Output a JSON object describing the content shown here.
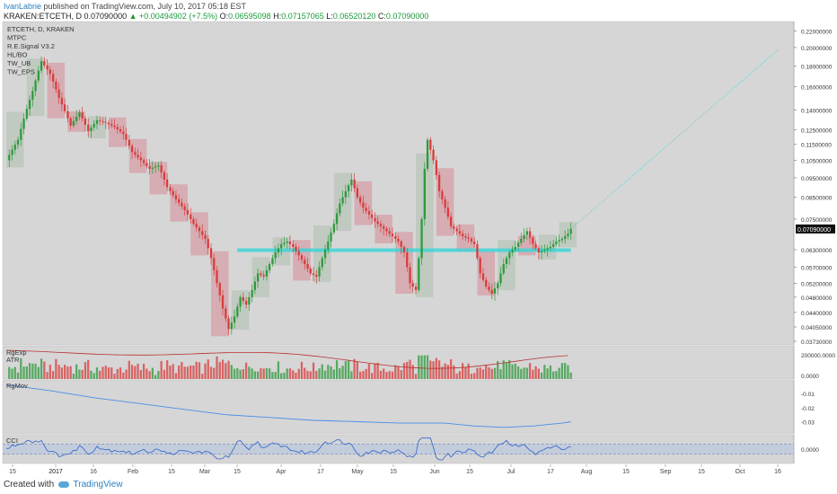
{
  "header": {
    "author": "IvanLabrie",
    "published": "published on TradingView.com, July 10, 2017 05:18 EST",
    "symbol": "KRAKEN:ETCETH, D",
    "last": "0.07090000",
    "change": "▲ +0.00494902 (+7.5%)",
    "o_label": "O:",
    "o": "0.06595098",
    "h_label": "H:",
    "h": "0.07157065",
    "l_label": "L:",
    "l": "0.06520120",
    "c_label": "C:",
    "c": "0.07090000"
  },
  "legend": [
    "ETCETH, D, KRAKEN",
    "MTPC",
    "R.E.Signal V3.2",
    "HL/BO",
    "TW_UB",
    "TW_EPS"
  ],
  "pane_labels": {
    "volume_1": "RgExp",
    "volume_2": "ATR",
    "mom": "RgMov",
    "cci": "CCI"
  },
  "footer": {
    "created": "Created with",
    "brand": "TradingView"
  },
  "colors": {
    "bg": "#d6d6d6",
    "up": "#2e9a3c",
    "down": "#d83c3c",
    "bull_box": "#bcc8bc",
    "bear_box": "#d6a6ad",
    "cyan": "#36d4d8",
    "blue": "#4a8ee8",
    "red_line": "#b83030"
  },
  "chart_data": [
    {
      "type": "candlestick",
      "title": "ETCETH, D, KRAKEN",
      "price_axis_labels": [
        "0.22000000",
        "0.20000000",
        "0.18000000",
        "0.16000000",
        "0.14000000",
        "0.12500000",
        "0.11500000",
        "0.10500000",
        "0.09500000",
        "0.08500000",
        "0.07500000",
        "0.07090000",
        "0.06300000",
        "0.05700000",
        "0.05200000",
        "0.04800000",
        "0.04400000",
        "0.04050000",
        "0.03730000"
      ],
      "last_price": 0.0709,
      "log_scale": true,
      "ylim": [
        0.0373,
        0.225
      ],
      "x_ticks": [
        "15",
        "2017",
        "16",
        "Feb",
        "15",
        "Mar",
        "15",
        "Apr",
        "17",
        "May",
        "15",
        "Jun",
        "15",
        "Jul",
        "17",
        "Aug",
        "15",
        "Sep",
        "15",
        "Oct",
        "16"
      ],
      "close_path": [
        [
          0,
          0.105
        ],
        [
          4,
          0.118
        ],
        [
          9,
          0.156
        ],
        [
          12,
          0.185
        ],
        [
          15,
          0.172
        ],
        [
          18,
          0.15
        ],
        [
          22,
          0.128
        ],
        [
          25,
          0.138
        ],
        [
          28,
          0.124
        ],
        [
          31,
          0.132
        ],
        [
          34,
          0.13
        ],
        [
          37,
          0.127
        ],
        [
          40,
          0.122
        ],
        [
          43,
          0.11
        ],
        [
          46,
          0.105
        ],
        [
          49,
          0.1
        ],
        [
          52,
          0.102
        ],
        [
          55,
          0.09
        ],
        [
          58,
          0.084
        ],
        [
          61,
          0.079
        ],
        [
          64,
          0.073
        ],
        [
          66,
          0.07
        ],
        [
          68,
          0.067
        ],
        [
          70,
          0.06
        ],
        [
          72,
          0.052
        ],
        [
          74,
          0.045
        ],
        [
          76,
          0.04
        ],
        [
          78,
          0.043
        ],
        [
          80,
          0.048
        ],
        [
          82,
          0.046
        ],
        [
          84,
          0.05
        ],
        [
          86,
          0.055
        ],
        [
          88,
          0.054
        ],
        [
          90,
          0.058
        ],
        [
          92,
          0.062
        ],
        [
          94,
          0.065
        ],
        [
          96,
          0.066
        ],
        [
          98,
          0.064
        ],
        [
          100,
          0.061
        ],
        [
          102,
          0.058
        ],
        [
          104,
          0.055
        ],
        [
          106,
          0.054
        ],
        [
          108,
          0.06
        ],
        [
          110,
          0.066
        ],
        [
          112,
          0.073
        ],
        [
          114,
          0.082
        ],
        [
          116,
          0.088
        ],
        [
          118,
          0.094
        ],
        [
          120,
          0.085
        ],
        [
          122,
          0.08
        ],
        [
          124,
          0.077
        ],
        [
          126,
          0.074
        ],
        [
          128,
          0.072
        ],
        [
          130,
          0.07
        ],
        [
          132,
          0.068
        ],
        [
          134,
          0.066
        ],
        [
          136,
          0.062
        ],
        [
          138,
          0.052
        ],
        [
          140,
          0.05
        ],
        [
          141,
          0.06
        ],
        [
          142,
          0.075
        ],
        [
          143,
          0.1
        ],
        [
          144,
          0.118
        ],
        [
          146,
          0.105
        ],
        [
          148,
          0.088
        ],
        [
          150,
          0.08
        ],
        [
          152,
          0.072
        ],
        [
          154,
          0.07
        ],
        [
          156,
          0.068
        ],
        [
          158,
          0.067
        ],
        [
          160,
          0.065
        ],
        [
          161,
          0.06
        ],
        [
          162,
          0.055
        ],
        [
          164,
          0.051
        ],
        [
          166,
          0.049
        ],
        [
          168,
          0.052
        ],
        [
          170,
          0.058
        ],
        [
          172,
          0.062
        ],
        [
          174,
          0.064
        ],
        [
          176,
          0.067
        ],
        [
          178,
          0.07
        ],
        [
          180,
          0.065
        ],
        [
          182,
          0.062
        ],
        [
          184,
          0.063
        ],
        [
          186,
          0.064
        ],
        [
          188,
          0.066
        ],
        [
          190,
          0.067
        ],
        [
          192,
          0.069
        ],
        [
          193,
          0.0709
        ]
      ],
      "projection_end": [
        264,
        0.198
      ],
      "horizontal_support": {
        "from": 79,
        "to": 193,
        "value": 0.0628
      }
    },
    {
      "type": "bar",
      "title": "RgExp",
      "yaxis_labels": [
        "200000.0000",
        "0.0000"
      ]
    },
    {
      "type": "line",
      "title": "RgMov",
      "yaxis_labels": [
        "-0.01",
        "-0.02",
        "-0.03"
      ],
      "ylim": [
        -0.036,
        -0.003
      ],
      "points": [
        [
          0,
          -0.004
        ],
        [
          15,
          -0.008
        ],
        [
          30,
          -0.013
        ],
        [
          45,
          -0.017
        ],
        [
          60,
          -0.021
        ],
        [
          75,
          -0.025
        ],
        [
          90,
          -0.027
        ],
        [
          105,
          -0.029
        ],
        [
          120,
          -0.03
        ],
        [
          135,
          -0.031
        ],
        [
          150,
          -0.031
        ],
        [
          160,
          -0.033
        ],
        [
          170,
          -0.034
        ],
        [
          180,
          -0.033
        ],
        [
          190,
          -0.031
        ],
        [
          193,
          -0.03
        ]
      ]
    },
    {
      "type": "line",
      "title": "CCI",
      "yaxis_labels": [
        "0.0000"
      ],
      "ylim": [
        -250,
        250
      ]
    }
  ]
}
